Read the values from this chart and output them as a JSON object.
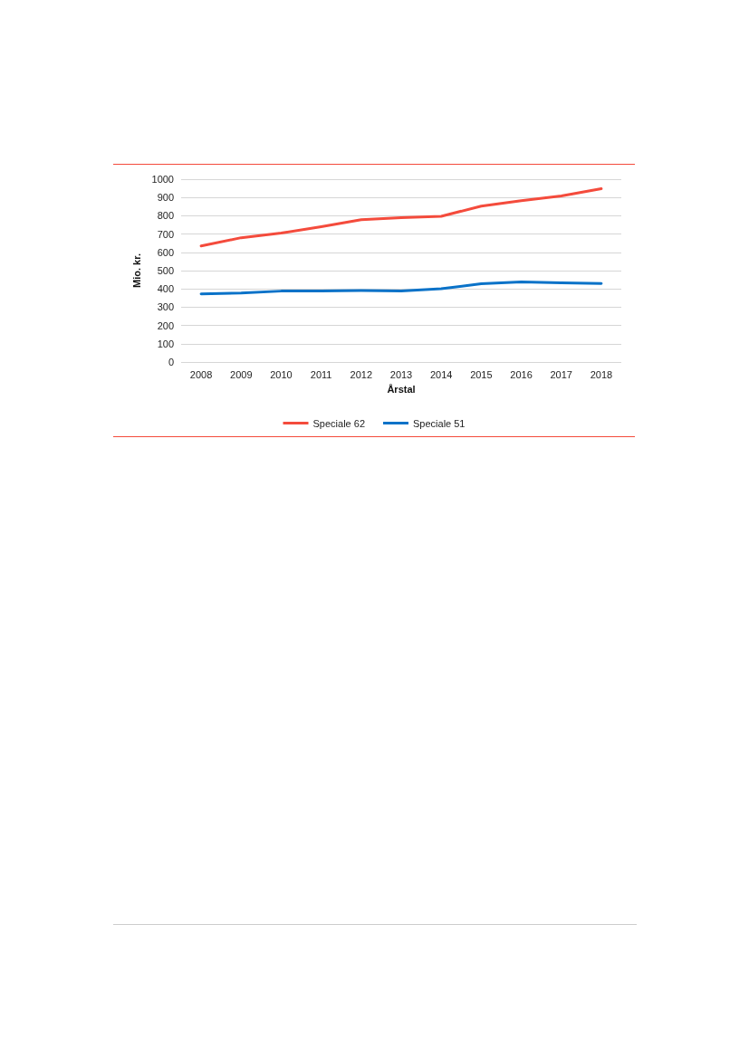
{
  "chart_data": {
    "type": "line",
    "xlabel": "Årstal",
    "ylabel": "Mio. kr.",
    "categories": [
      "2008",
      "2009",
      "2010",
      "2011",
      "2012",
      "2013",
      "2014",
      "2015",
      "2016",
      "2017",
      "2018"
    ],
    "series": [
      {
        "name": "Speciale 62",
        "color": "#f44b3c",
        "values": [
          635,
          680,
          705,
          740,
          778,
          790,
          797,
          853,
          882,
          908,
          948
        ]
      },
      {
        "name": "Speciale 51",
        "color": "#0a72c8",
        "values": [
          373,
          378,
          388,
          389,
          391,
          389,
          401,
          428,
          438,
          433,
          430
        ]
      }
    ],
    "ylim": [
      0,
      1000
    ],
    "yticks": [
      0,
      100,
      200,
      300,
      400,
      500,
      600,
      700,
      800,
      900,
      1000
    ],
    "grid": "y",
    "legend": "bottom",
    "marker": "none",
    "line_style": "solid"
  }
}
